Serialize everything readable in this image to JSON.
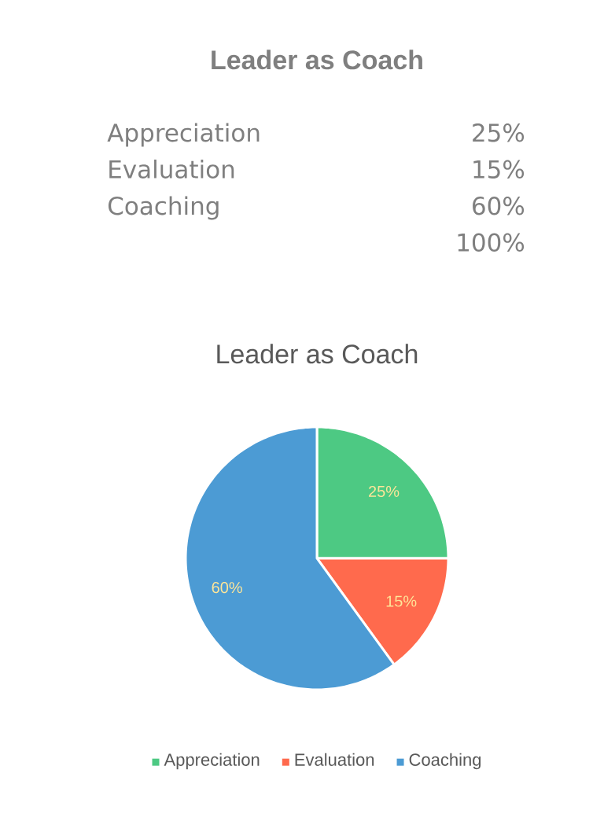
{
  "chart_data": [
    {
      "type": "other",
      "title": "Leader as Coach",
      "annotations": [
        "Appreciation",
        "25%",
        "Evaluation",
        "15%",
        "Coaching",
        "60%",
        "100%"
      ]
    },
    {
      "type": "pie",
      "title": "Leader as Coach",
      "categories": [
        "Appreciation",
        "Evaluation",
        "Coaching"
      ],
      "values": [
        25,
        15,
        60
      ],
      "colors": [
        "#4dc983",
        "#ff6a4d",
        "#4c9bd4"
      ],
      "value_labels": [
        "25%",
        "15%",
        "60%"
      ],
      "legend": "bottom"
    }
  ]
}
